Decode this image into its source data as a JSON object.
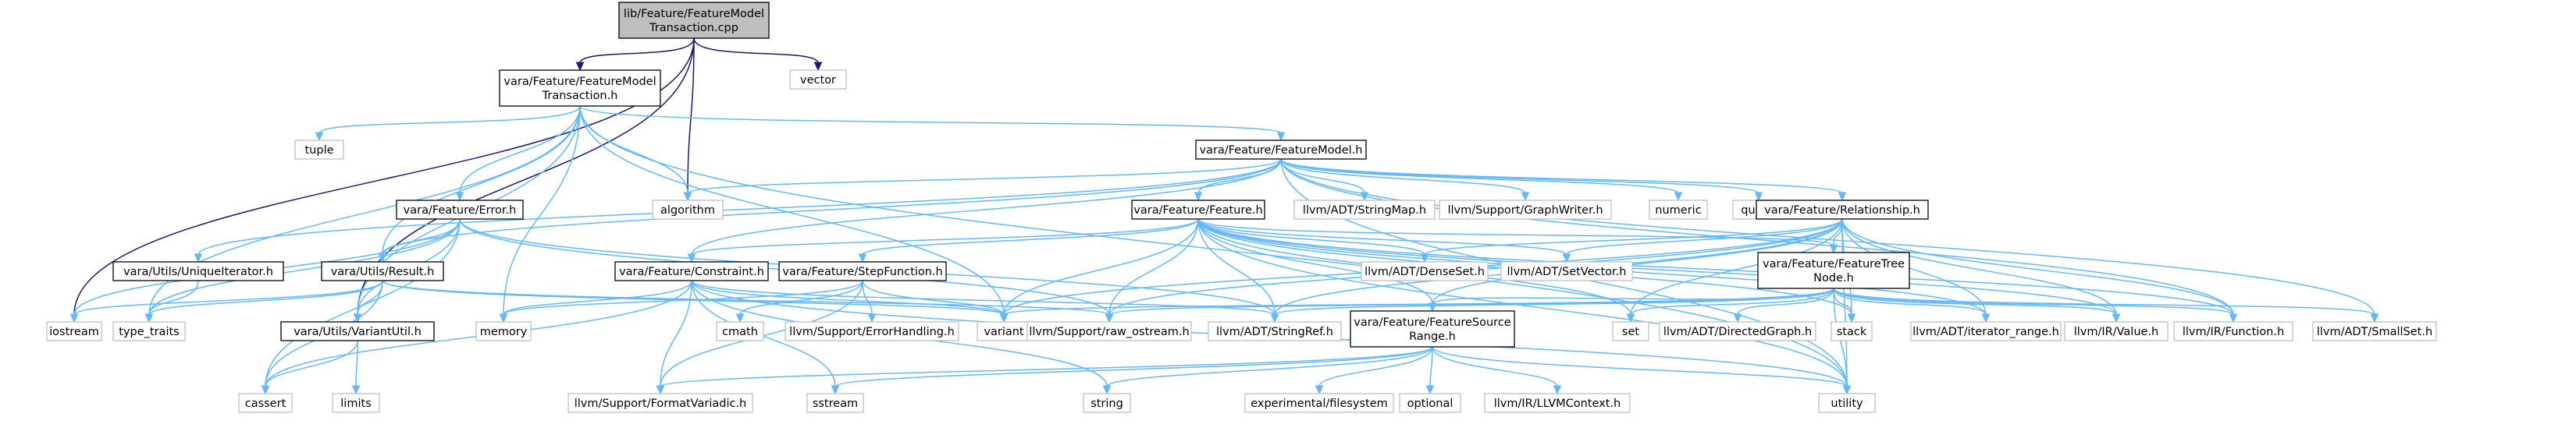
{
  "nodes": [
    {
      "id": "main",
      "kind": "main",
      "lines": [
        "lib/Feature/FeatureModel",
        "Transaction.cpp"
      ]
    },
    {
      "id": "vector",
      "kind": "system",
      "lines": [
        "vector"
      ]
    },
    {
      "id": "fmt_h",
      "kind": "header",
      "lines": [
        "vara/Feature/FeatureModel",
        "Transaction.h"
      ]
    },
    {
      "id": "tuple",
      "kind": "system",
      "lines": [
        "tuple"
      ]
    },
    {
      "id": "fm_h",
      "kind": "header",
      "lines": [
        "vara/Feature/FeatureModel.h"
      ]
    },
    {
      "id": "error_h",
      "kind": "header",
      "lines": [
        "vara/Feature/Error.h"
      ]
    },
    {
      "id": "algorithm",
      "kind": "system",
      "lines": [
        "algorithm"
      ]
    },
    {
      "id": "feature_h",
      "kind": "header",
      "lines": [
        "vara/Feature/Feature.h"
      ]
    },
    {
      "id": "stringmap",
      "kind": "system",
      "lines": [
        "llvm/ADT/StringMap.h"
      ]
    },
    {
      "id": "graphwriter",
      "kind": "system",
      "lines": [
        "llvm/Support/GraphWriter.h"
      ]
    },
    {
      "id": "numeric",
      "kind": "system",
      "lines": [
        "numeric"
      ]
    },
    {
      "id": "queue",
      "kind": "system",
      "lines": [
        "queue"
      ]
    },
    {
      "id": "rel_h",
      "kind": "header",
      "lines": [
        "vara/Feature/Relationship.h"
      ]
    },
    {
      "id": "uniqit_h",
      "kind": "header",
      "lines": [
        "vara/Utils/UniqueIterator.h"
      ]
    },
    {
      "id": "result_h",
      "kind": "header",
      "lines": [
        "vara/Utils/Result.h"
      ]
    },
    {
      "id": "constraint_h",
      "kind": "header",
      "lines": [
        "vara/Feature/Constraint.h"
      ]
    },
    {
      "id": "stepfn_h",
      "kind": "header",
      "lines": [
        "vara/Feature/StepFunction.h"
      ]
    },
    {
      "id": "denseset",
      "kind": "system",
      "lines": [
        "llvm/ADT/DenseSet.h"
      ]
    },
    {
      "id": "setvector",
      "kind": "system",
      "lines": [
        "llvm/ADT/SetVector.h"
      ]
    },
    {
      "id": "ftn_h",
      "kind": "header",
      "lines": [
        "vara/Feature/FeatureTree",
        "Node.h"
      ]
    },
    {
      "id": "iostream",
      "kind": "system",
      "lines": [
        "iostream"
      ]
    },
    {
      "id": "type_traits",
      "kind": "system",
      "lines": [
        "type_traits"
      ]
    },
    {
      "id": "variantutil_h",
      "kind": "header",
      "lines": [
        "vara/Utils/VariantUtil.h"
      ]
    },
    {
      "id": "memory",
      "kind": "system",
      "lines": [
        "memory"
      ]
    },
    {
      "id": "cmath",
      "kind": "system",
      "lines": [
        "cmath"
      ]
    },
    {
      "id": "errorhandling",
      "kind": "system",
      "lines": [
        "llvm/Support/ErrorHandling.h"
      ]
    },
    {
      "id": "variant",
      "kind": "system",
      "lines": [
        "variant"
      ]
    },
    {
      "id": "raw_ostream",
      "kind": "system",
      "lines": [
        "llvm/Support/raw_ostream.h"
      ]
    },
    {
      "id": "stringref",
      "kind": "system",
      "lines": [
        "llvm/ADT/StringRef.h"
      ]
    },
    {
      "id": "fsr_h",
      "kind": "header",
      "lines": [
        "vara/Feature/FeatureSource",
        "Range.h"
      ]
    },
    {
      "id": "set",
      "kind": "system",
      "lines": [
        "set"
      ]
    },
    {
      "id": "directedgraph",
      "kind": "system",
      "lines": [
        "llvm/ADT/DirectedGraph.h"
      ]
    },
    {
      "id": "stack",
      "kind": "system",
      "lines": [
        "stack"
      ]
    },
    {
      "id": "iterator_range",
      "kind": "system",
      "lines": [
        "llvm/ADT/iterator_range.h"
      ]
    },
    {
      "id": "ir_value",
      "kind": "system",
      "lines": [
        "llvm/IR/Value.h"
      ]
    },
    {
      "id": "ir_function",
      "kind": "system",
      "lines": [
        "llvm/IR/Function.h"
      ]
    },
    {
      "id": "smallset",
      "kind": "system",
      "lines": [
        "llvm/ADT/SmallSet.h"
      ]
    },
    {
      "id": "cassert",
      "kind": "system",
      "lines": [
        "cassert"
      ]
    },
    {
      "id": "limits",
      "kind": "system",
      "lines": [
        "limits"
      ]
    },
    {
      "id": "formatvariadic",
      "kind": "system",
      "lines": [
        "llvm/Support/FormatVariadic.h"
      ]
    },
    {
      "id": "sstream",
      "kind": "system",
      "lines": [
        "sstream"
      ]
    },
    {
      "id": "string",
      "kind": "system",
      "lines": [
        "string"
      ]
    },
    {
      "id": "filesystem",
      "kind": "system",
      "lines": [
        "experimental/filesystem"
      ]
    },
    {
      "id": "optional",
      "kind": "system",
      "lines": [
        "optional"
      ]
    },
    {
      "id": "llvmcontext",
      "kind": "system",
      "lines": [
        "llvm/IR/LLVMContext.h"
      ]
    },
    {
      "id": "utility",
      "kind": "system",
      "lines": [
        "utility"
      ]
    }
  ],
  "edges": [
    [
      "main",
      "vector"
    ],
    [
      "main",
      "fmt_h"
    ],
    [
      "main",
      "algorithm"
    ],
    [
      "main",
      "iostream"
    ],
    [
      "main",
      "variantutil_h"
    ],
    [
      "fmt_h",
      "tuple"
    ],
    [
      "fmt_h",
      "fm_h"
    ],
    [
      "fmt_h",
      "error_h"
    ],
    [
      "fmt_h",
      "algorithm"
    ],
    [
      "fmt_h",
      "result_h"
    ],
    [
      "fmt_h",
      "type_traits"
    ],
    [
      "fmt_h",
      "variantutil_h"
    ],
    [
      "fmt_h",
      "memory"
    ],
    [
      "fmt_h",
      "variant"
    ],
    [
      "fmt_h",
      "utility"
    ],
    [
      "fm_h",
      "feature_h"
    ],
    [
      "fm_h",
      "stringmap"
    ],
    [
      "fm_h",
      "graphwriter"
    ],
    [
      "fm_h",
      "numeric"
    ],
    [
      "fm_h",
      "queue"
    ],
    [
      "fm_h",
      "rel_h"
    ],
    [
      "fm_h",
      "algorithm"
    ],
    [
      "fm_h",
      "uniqit_h"
    ],
    [
      "fm_h",
      "result_h"
    ],
    [
      "fm_h",
      "constraint_h"
    ],
    [
      "fm_h",
      "ir_function"
    ],
    [
      "fm_h",
      "smallset"
    ],
    [
      "fm_h",
      "utility"
    ],
    [
      "error_h",
      "result_h"
    ],
    [
      "error_h",
      "iostream"
    ],
    [
      "error_h",
      "type_traits"
    ],
    [
      "error_h",
      "cassert"
    ],
    [
      "error_h",
      "variantutil_h"
    ],
    [
      "error_h",
      "raw_ostream"
    ],
    [
      "error_h",
      "stringref"
    ],
    [
      "feature_h",
      "constraint_h"
    ],
    [
      "feature_h",
      "stepfn_h"
    ],
    [
      "feature_h",
      "denseset"
    ],
    [
      "feature_h",
      "setvector"
    ],
    [
      "feature_h",
      "ftn_h"
    ],
    [
      "feature_h",
      "variant"
    ],
    [
      "feature_h",
      "raw_ostream"
    ],
    [
      "feature_h",
      "stringref"
    ],
    [
      "feature_h",
      "fsr_h"
    ],
    [
      "feature_h",
      "set"
    ],
    [
      "feature_h",
      "stack"
    ],
    [
      "feature_h",
      "iterator_range"
    ],
    [
      "feature_h",
      "ir_value"
    ],
    [
      "feature_h",
      "ir_function"
    ],
    [
      "feature_h",
      "utility"
    ],
    [
      "rel_h",
      "ftn_h"
    ],
    [
      "rel_h",
      "denseset"
    ],
    [
      "rel_h",
      "setvector"
    ],
    [
      "rel_h",
      "variant"
    ],
    [
      "rel_h",
      "raw_ostream"
    ],
    [
      "rel_h",
      "stringref"
    ],
    [
      "rel_h",
      "fsr_h"
    ],
    [
      "rel_h",
      "set"
    ],
    [
      "rel_h",
      "stack"
    ],
    [
      "rel_h",
      "iterator_range"
    ],
    [
      "rel_h",
      "ir_value"
    ],
    [
      "rel_h",
      "ir_function"
    ],
    [
      "rel_h",
      "utility"
    ],
    [
      "uniqit_h",
      "type_traits"
    ],
    [
      "result_h",
      "iostream"
    ],
    [
      "result_h",
      "type_traits"
    ],
    [
      "result_h",
      "variantutil_h"
    ],
    [
      "result_h",
      "cassert"
    ],
    [
      "result_h",
      "variant"
    ],
    [
      "result_h",
      "raw_ostream"
    ],
    [
      "constraint_h",
      "memory"
    ],
    [
      "constraint_h",
      "variant"
    ],
    [
      "constraint_h",
      "cassert"
    ],
    [
      "constraint_h",
      "formatvariadic"
    ],
    [
      "constraint_h",
      "sstream"
    ],
    [
      "constraint_h",
      "string"
    ],
    [
      "constraint_h",
      "stringref"
    ],
    [
      "constraint_h",
      "utility"
    ],
    [
      "stepfn_h",
      "memory"
    ],
    [
      "stepfn_h",
      "cmath"
    ],
    [
      "stepfn_h",
      "errorhandling"
    ],
    [
      "stepfn_h",
      "variant"
    ],
    [
      "stepfn_h",
      "formatvariadic"
    ],
    [
      "variantutil_h",
      "cassert"
    ],
    [
      "variantutil_h",
      "limits"
    ],
    [
      "ftn_h",
      "variant"
    ],
    [
      "ftn_h",
      "raw_ostream"
    ],
    [
      "ftn_h",
      "stringref"
    ],
    [
      "ftn_h",
      "fsr_h"
    ],
    [
      "ftn_h",
      "set"
    ],
    [
      "ftn_h",
      "directedgraph"
    ],
    [
      "ftn_h",
      "stack"
    ],
    [
      "ftn_h",
      "iterator_range"
    ],
    [
      "ftn_h",
      "ir_value"
    ],
    [
      "ftn_h",
      "ir_function"
    ],
    [
      "ftn_h",
      "smallset"
    ],
    [
      "ftn_h",
      "utility"
    ],
    [
      "fsr_h",
      "formatvariadic"
    ],
    [
      "fsr_h",
      "sstream"
    ],
    [
      "fsr_h",
      "string"
    ],
    [
      "fsr_h",
      "filesystem"
    ],
    [
      "fsr_h",
      "optional"
    ],
    [
      "fsr_h",
      "llvmcontext"
    ],
    [
      "fsr_h",
      "utility"
    ]
  ],
  "colors": {
    "main_fill": "#bfbfbf",
    "header_border": "#000000",
    "system_border": "#bfbfbf",
    "edge": "#63b8ff",
    "edge_direct": "#191970"
  }
}
